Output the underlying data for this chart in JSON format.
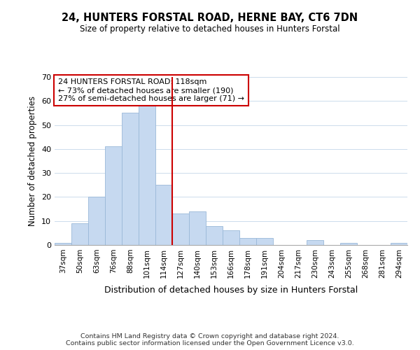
{
  "title": "24, HUNTERS FORSTAL ROAD, HERNE BAY, CT6 7DN",
  "subtitle": "Size of property relative to detached houses in Hunters Forstal",
  "xlabel": "Distribution of detached houses by size in Hunters Forstal",
  "ylabel": "Number of detached properties",
  "bar_labels": [
    "37sqm",
    "50sqm",
    "63sqm",
    "76sqm",
    "88sqm",
    "101sqm",
    "114sqm",
    "127sqm",
    "140sqm",
    "153sqm",
    "166sqm",
    "178sqm",
    "191sqm",
    "204sqm",
    "217sqm",
    "230sqm",
    "243sqm",
    "255sqm",
    "268sqm",
    "281sqm",
    "294sqm"
  ],
  "bar_values": [
    1,
    9,
    20,
    41,
    55,
    58,
    25,
    13,
    14,
    8,
    6,
    3,
    3,
    0,
    0,
    2,
    0,
    1,
    0,
    0,
    1
  ],
  "bar_color": "#c6d9f0",
  "bar_edge_color": "#9ab8d8",
  "highlight_index": 6,
  "highlight_color": "#cc0000",
  "ylim": [
    0,
    70
  ],
  "yticks": [
    0,
    10,
    20,
    30,
    40,
    50,
    60,
    70
  ],
  "annotation_lines": [
    "24 HUNTERS FORSTAL ROAD: 118sqm",
    "← 73% of detached houses are smaller (190)",
    "27% of semi-detached houses are larger (71) →"
  ],
  "footer_lines": [
    "Contains HM Land Registry data © Crown copyright and database right 2024.",
    "Contains public sector information licensed under the Open Government Licence v3.0."
  ],
  "background_color": "#ffffff",
  "grid_color": "#ccdcec"
}
